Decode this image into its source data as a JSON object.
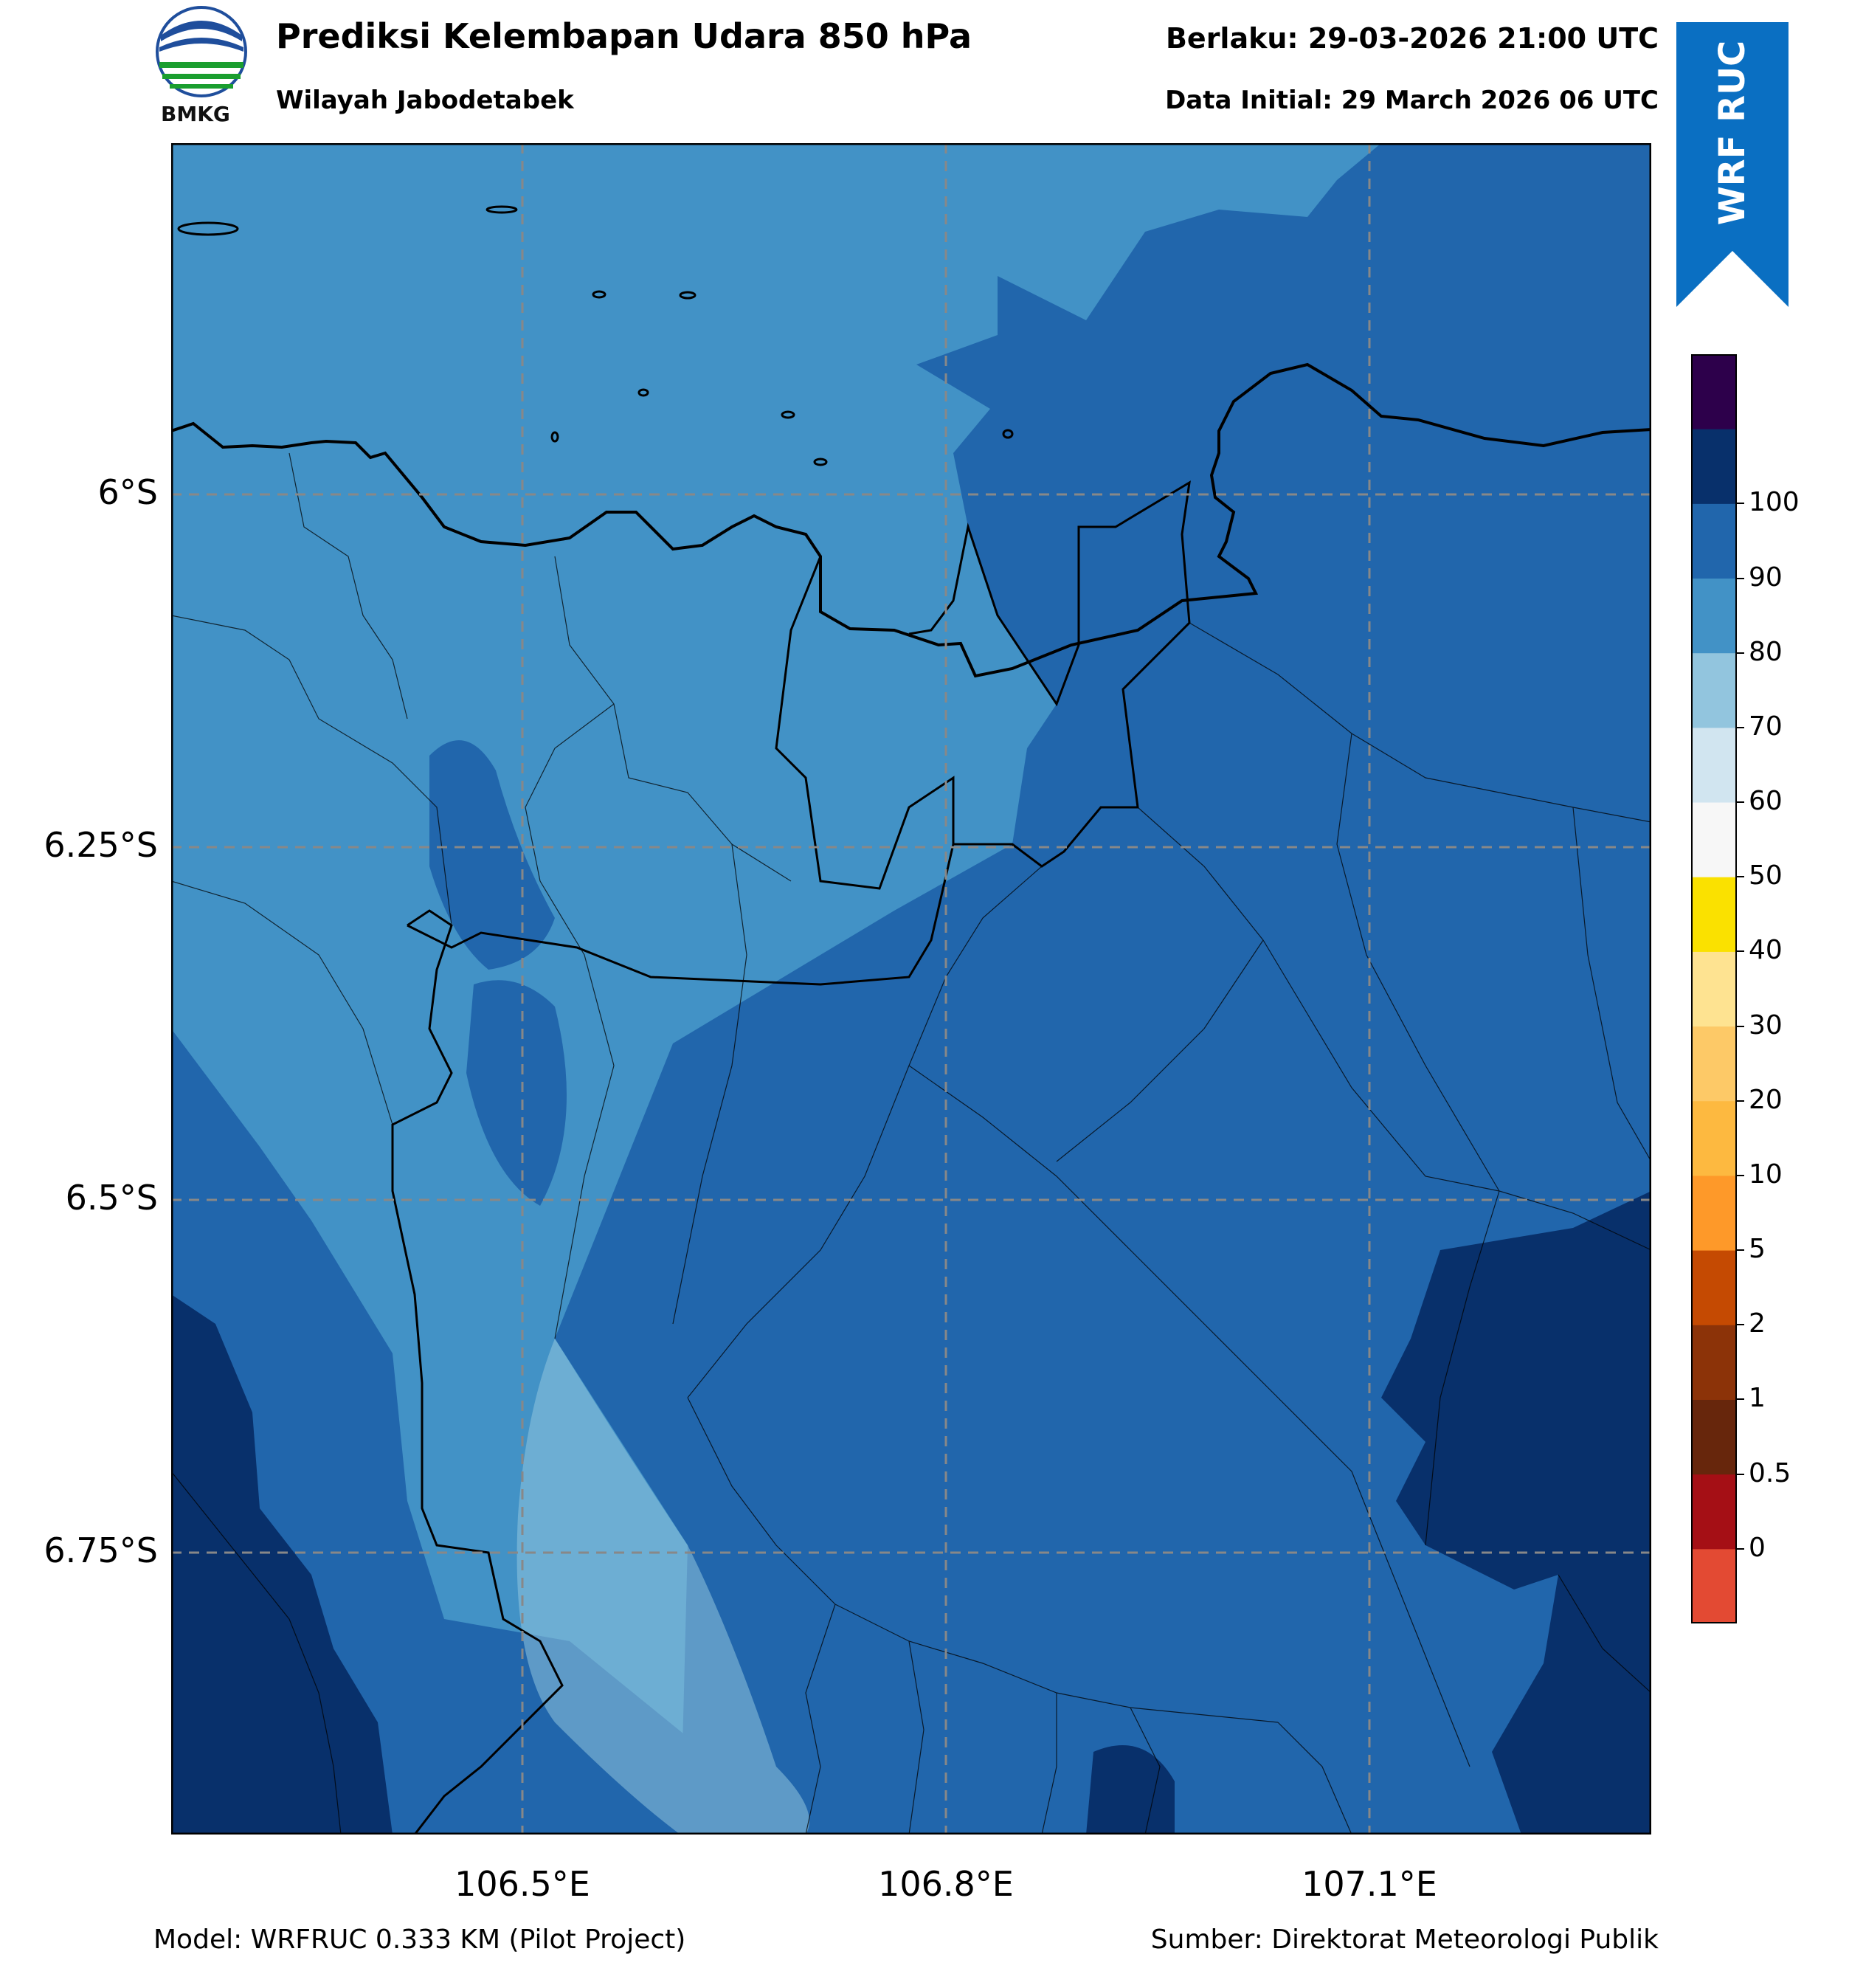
{
  "header": {
    "title": "Prediksi Kelembapan Udara 850 hPa",
    "subtitle": "Wilayah Jabodetabek",
    "valid_time": "Berlaku: 29-03-2026 21:00 UTC",
    "initial_time": "Data Initial: 29 March 2026 06 UTC"
  },
  "logo": {
    "text": "BMKG",
    "icon": "bmkg-logo-icon"
  },
  "ribbon": {
    "text": "WRF RUC",
    "color": "#0a6fc2"
  },
  "map": {
    "latitude_labels": [
      "6°S",
      "6.25°S",
      "6.5°S",
      "6.75°S"
    ],
    "longitude_labels": [
      "106.5°E",
      "106.8°E",
      "107.1°E"
    ],
    "region_colors": {
      "band_70_80": "#4292c6",
      "band_80_90": "#2166ac",
      "band_90_100": "#08306b",
      "band_60_70": "#92c5de"
    }
  },
  "colorbar": {
    "tick_labels": [
      "0",
      "0.5",
      "1",
      "2",
      "5",
      "10",
      "20",
      "30",
      "40",
      "50",
      "60",
      "70",
      "80",
      "90",
      "100"
    ],
    "colors": [
      "#e34a33",
      "#a50f15",
      "#67260c",
      "#8c3308",
      "#c54a02",
      "#fe9929",
      "#fdb940",
      "#fdc967",
      "#fee391",
      "#fae100",
      "#f7f7f7",
      "#d1e5f0",
      "#92c5de",
      "#4292c6",
      "#2166ac",
      "#08306b",
      "#2d004b"
    ]
  },
  "footer": {
    "model": "Model: WRFRUC 0.333 KM (Pilot Project)",
    "source": "Sumber: Direktorat Meteorologi Publik"
  }
}
